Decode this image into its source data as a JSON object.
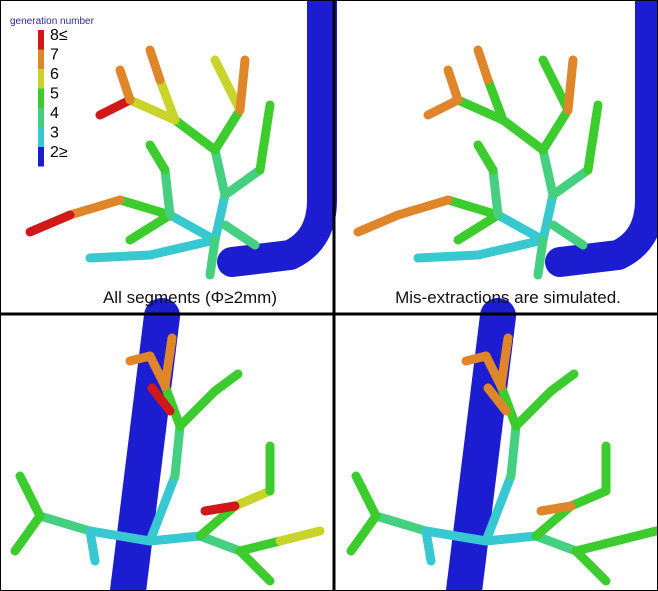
{
  "legend": {
    "title": "generation number",
    "items": [
      {
        "label": "8≤",
        "color": "#d01818"
      },
      {
        "label": "7",
        "color": "#e0862a"
      },
      {
        "label": "6",
        "color": "#c8d42a"
      },
      {
        "label": "5",
        "color": "#3ccc2e"
      },
      {
        "label": "4",
        "color": "#44d080"
      },
      {
        "label": "3",
        "color": "#38c8d0"
      },
      {
        "label": "2≥",
        "color": "#1c1cd0"
      }
    ]
  },
  "panels": [
    {
      "caption": "All segments (Φ≥2mm)"
    },
    {
      "caption": "Mis-extractions are simulated."
    }
  ]
}
